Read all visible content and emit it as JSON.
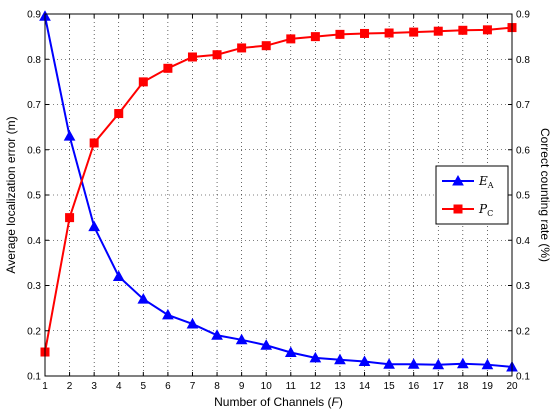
{
  "chart_data": {
    "type": "line",
    "title": "",
    "xlabel": "Number of Channels (",
    "xlabel_var": "F",
    "xlabel_close": ")",
    "ylabel_left": "Average localization error (m)",
    "ylabel_right": "Correct counting rate (%)",
    "x": [
      1,
      2,
      3,
      4,
      5,
      6,
      7,
      8,
      9,
      10,
      11,
      12,
      13,
      14,
      15,
      16,
      17,
      18,
      19,
      20
    ],
    "xlim": [
      1,
      20
    ],
    "ylim_left": [
      0.1,
      0.9
    ],
    "ylim_right": [
      0.1,
      0.9
    ],
    "x_ticks": [
      "1",
      "2",
      "3",
      "4",
      "5",
      "6",
      "7",
      "8",
      "9",
      "10",
      "11",
      "12",
      "13",
      "14",
      "15",
      "16",
      "17",
      "18",
      "19",
      "20"
    ],
    "y_ticks_left": [
      "0.1",
      "0.2",
      "0.3",
      "0.4",
      "0.5",
      "0.6",
      "0.7",
      "0.8",
      "0.9"
    ],
    "y_ticks_right": [
      "0.1",
      "0.2",
      "0.3",
      "0.4",
      "0.5",
      "0.6",
      "0.7",
      "0.8",
      "0.9"
    ],
    "grid": "dotted",
    "legend_position": "right",
    "series": [
      {
        "name": "E",
        "name_sub": "A",
        "axis": "left",
        "color": "#0000ff",
        "marker": "triangle",
        "values": [
          0.895,
          0.63,
          0.43,
          0.32,
          0.27,
          0.235,
          0.215,
          0.19,
          0.18,
          0.168,
          0.152,
          0.14,
          0.136,
          0.132,
          0.126,
          0.126,
          0.125,
          0.127,
          0.125,
          0.12
        ]
      },
      {
        "name": "P",
        "name_sub": "C",
        "axis": "right",
        "color": "#ff0000",
        "marker": "square",
        "values": [
          0.153,
          0.45,
          0.615,
          0.68,
          0.75,
          0.78,
          0.805,
          0.81,
          0.825,
          0.83,
          0.845,
          0.85,
          0.855,
          0.857,
          0.858,
          0.86,
          0.862,
          0.864,
          0.865,
          0.87
        ]
      }
    ]
  }
}
